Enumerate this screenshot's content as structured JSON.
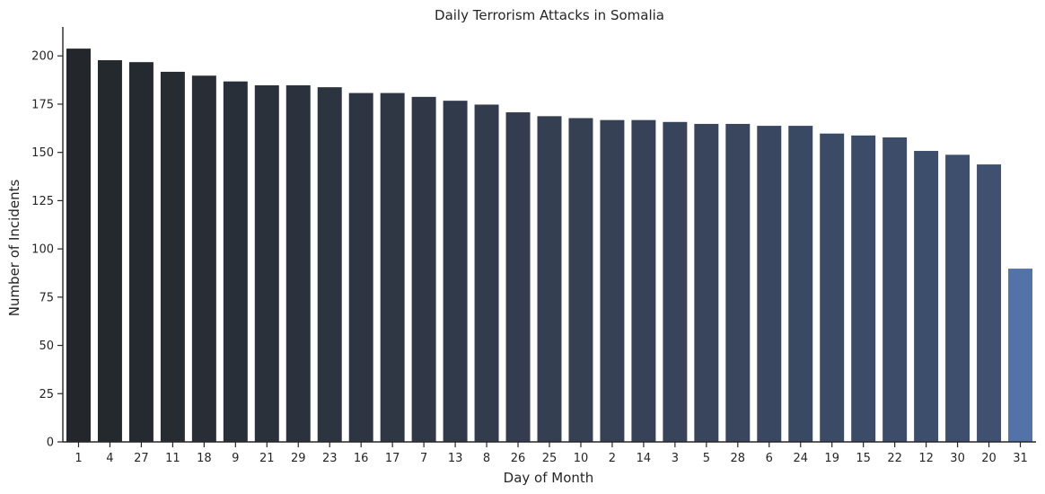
{
  "chart_data": {
    "type": "bar",
    "title": "Daily Terrorism Attacks in Somalia",
    "xlabel": "Day of Month",
    "ylabel": "Number of Incidents",
    "categories": [
      "1",
      "4",
      "27",
      "11",
      "18",
      "9",
      "21",
      "29",
      "23",
      "16",
      "17",
      "7",
      "13",
      "8",
      "26",
      "25",
      "10",
      "2",
      "14",
      "3",
      "5",
      "28",
      "6",
      "24",
      "19",
      "15",
      "22",
      "12",
      "30",
      "20",
      "31"
    ],
    "values": [
      204,
      198,
      197,
      192,
      190,
      187,
      185,
      185,
      184,
      181,
      181,
      179,
      177,
      175,
      171,
      169,
      168,
      167,
      167,
      166,
      165,
      165,
      164,
      164,
      160,
      159,
      158,
      151,
      149,
      144,
      90
    ],
    "ylim": [
      0,
      215
    ],
    "yticks": [
      0,
      25,
      50,
      75,
      100,
      125,
      150,
      175,
      200
    ],
    "grid": false,
    "colors": {
      "start": "#23272c",
      "mid": "#343e50",
      "end": "#3f5070",
      "last": "#5272a8"
    }
  }
}
